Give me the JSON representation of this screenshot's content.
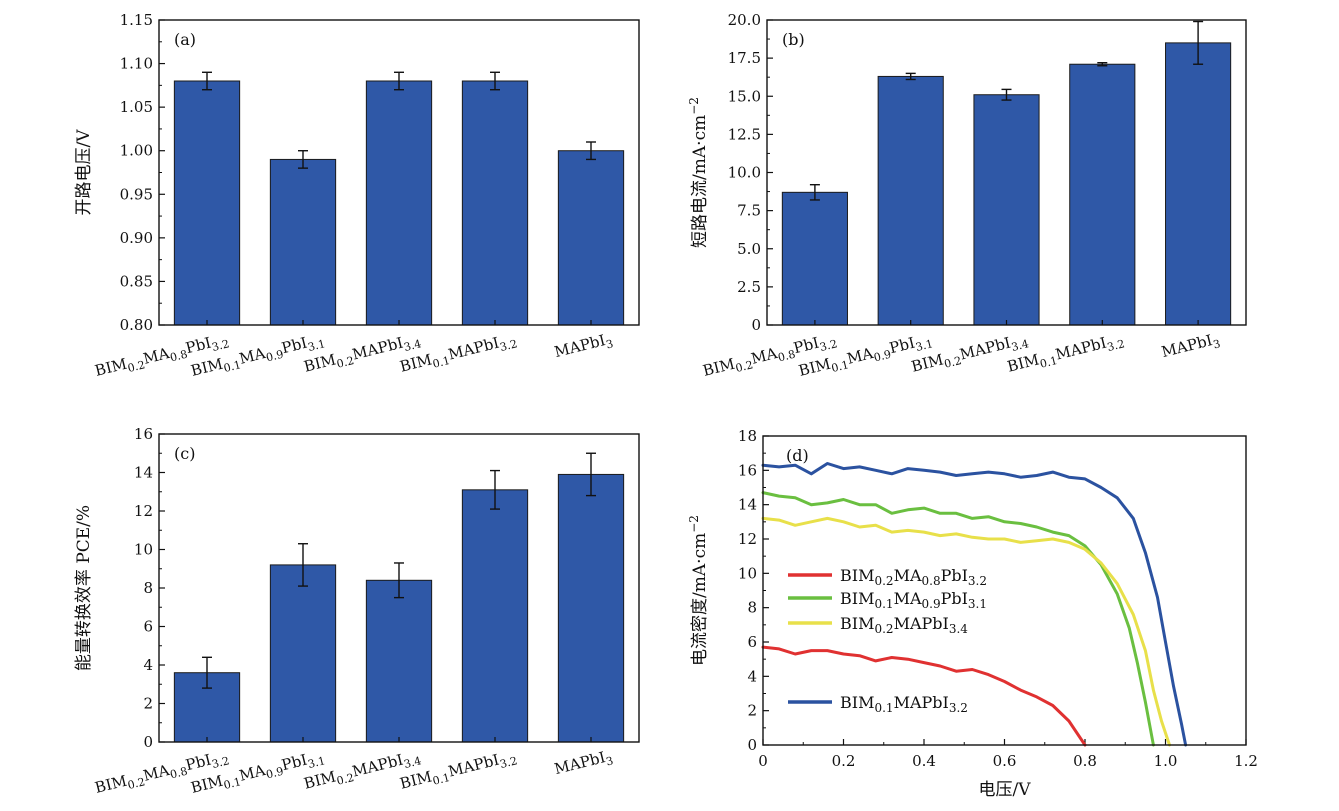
{
  "chart_data": [
    {
      "panel": "(a)",
      "type": "bar",
      "ylabel": "开路电压/V",
      "ylim": [
        0.8,
        1.15
      ],
      "yticks": [
        "0.80",
        "0.85",
        "0.90",
        "0.95",
        "1.00",
        "1.05",
        "1.10",
        "1.15"
      ],
      "categories": [
        {
          "main": "BIM",
          "sub1": "0.2",
          "mid": "MA",
          "sub2": "0.8",
          "tail": "PbI",
          "sub3": "3.2"
        },
        {
          "main": "BIM",
          "sub1": "0.1",
          "mid": "MA",
          "sub2": "0.9",
          "tail": "PbI",
          "sub3": "3.1"
        },
        {
          "main": "BIM",
          "sub1": "0.2",
          "mid": "",
          "sub2": "",
          "tail": "MAPbI",
          "sub3": "3.4"
        },
        {
          "main": "BIM",
          "sub1": "0.1",
          "mid": "",
          "sub2": "",
          "tail": "MAPbI",
          "sub3": "3.2"
        },
        {
          "main": "",
          "sub1": "",
          "mid": "",
          "sub2": "",
          "tail": "MAPbI",
          "sub3": "3"
        }
      ],
      "values": [
        1.08,
        0.99,
        1.08,
        1.08,
        1.0
      ],
      "errors": [
        0.01,
        0.01,
        0.01,
        0.01,
        0.01
      ]
    },
    {
      "panel": "(b)",
      "type": "bar",
      "ylabel": "短路电流/mA·cm",
      "ylabel_sup": "−2",
      "ylim": [
        0,
        20
      ],
      "yticks": [
        "0",
        "2.5",
        "5.0",
        "7.5",
        "10.0",
        "12.5",
        "15.0",
        "17.5",
        "20.0"
      ],
      "categories": [
        {
          "main": "BIM",
          "sub1": "0.2",
          "mid": "MA",
          "sub2": "0.8",
          "tail": "PbI",
          "sub3": "3.2"
        },
        {
          "main": "BIM",
          "sub1": "0.1",
          "mid": "MA",
          "sub2": "0.9",
          "tail": "PbI",
          "sub3": "3.1"
        },
        {
          "main": "BIM",
          "sub1": "0.2",
          "mid": "",
          "sub2": "",
          "tail": "MAPbI",
          "sub3": "3.4"
        },
        {
          "main": "BIM",
          "sub1": "0.1",
          "mid": "",
          "sub2": "",
          "tail": "MAPbI",
          "sub3": "3.2"
        },
        {
          "main": "",
          "sub1": "",
          "mid": "",
          "sub2": "",
          "tail": "MAPbI",
          "sub3": "3"
        }
      ],
      "values": [
        8.7,
        16.3,
        15.1,
        17.1,
        18.5
      ],
      "errors": [
        0.5,
        0.2,
        0.35,
        0.1,
        1.4
      ]
    },
    {
      "panel": "(c)",
      "type": "bar",
      "ylabel": "能量转换效率 PCE/%",
      "ylim": [
        0,
        16
      ],
      "yticks": [
        "0",
        "2",
        "4",
        "6",
        "8",
        "10",
        "12",
        "14",
        "16"
      ],
      "categories": [
        {
          "main": "BIM",
          "sub1": "0.2",
          "mid": "MA",
          "sub2": "0.8",
          "tail": "PbI",
          "sub3": "3.2"
        },
        {
          "main": "BIM",
          "sub1": "0.1",
          "mid": "MA",
          "sub2": "0.9",
          "tail": "PbI",
          "sub3": "3.1"
        },
        {
          "main": "BIM",
          "sub1": "0.2",
          "mid": "",
          "sub2": "",
          "tail": "MAPbI",
          "sub3": "3.4"
        },
        {
          "main": "BIM",
          "sub1": "0.1",
          "mid": "",
          "sub2": "",
          "tail": "MAPbI",
          "sub3": "3.2"
        },
        {
          "main": "",
          "sub1": "",
          "mid": "",
          "sub2": "",
          "tail": "MAPbI",
          "sub3": "3"
        }
      ],
      "values": [
        3.6,
        9.2,
        8.4,
        13.1,
        13.9
      ],
      "errors": [
        0.8,
        1.1,
        0.9,
        1.0,
        1.1
      ]
    },
    {
      "panel": "(d)",
      "type": "line",
      "xlabel": "电压/V",
      "ylabel": "电流密度/mA·cm",
      "ylabel_sup": "−2",
      "xlim": [
        0,
        1.2
      ],
      "ylim": [
        0,
        18
      ],
      "xticks": [
        "0",
        "0.2",
        "0.4",
        "0.6",
        "0.8",
        "1.0",
        "1.2"
      ],
      "yticks": [
        "0",
        "2",
        "4",
        "6",
        "8",
        "10",
        "12",
        "14",
        "16",
        "18"
      ],
      "series": [
        {
          "legend": {
            "main": "BIM",
            "sub1": "0.2",
            "mid": "MA",
            "sub2": "0.8",
            "tail": "PbI",
            "sub3": "3.2"
          },
          "color": "#e03131",
          "points": [
            [
              0,
              5.7
            ],
            [
              0.04,
              5.6
            ],
            [
              0.08,
              5.3
            ],
            [
              0.12,
              5.5
            ],
            [
              0.16,
              5.5
            ],
            [
              0.2,
              5.3
            ],
            [
              0.24,
              5.2
            ],
            [
              0.28,
              4.9
            ],
            [
              0.32,
              5.1
            ],
            [
              0.36,
              5.0
            ],
            [
              0.4,
              4.8
            ],
            [
              0.44,
              4.6
            ],
            [
              0.48,
              4.3
            ],
            [
              0.52,
              4.4
            ],
            [
              0.56,
              4.1
            ],
            [
              0.6,
              3.7
            ],
            [
              0.64,
              3.2
            ],
            [
              0.68,
              2.8
            ],
            [
              0.72,
              2.3
            ],
            [
              0.76,
              1.4
            ],
            [
              0.8,
              0
            ]
          ]
        },
        {
          "legend": {
            "main": "BIM",
            "sub1": "0.1",
            "mid": "MA",
            "sub2": "0.9",
            "tail": "PbI",
            "sub3": "3.1"
          },
          "color": "#6abf40",
          "points": [
            [
              0,
              14.7
            ],
            [
              0.04,
              14.5
            ],
            [
              0.08,
              14.4
            ],
            [
              0.12,
              14.0
            ],
            [
              0.16,
              14.1
            ],
            [
              0.2,
              14.3
            ],
            [
              0.24,
              14.0
            ],
            [
              0.28,
              14.0
            ],
            [
              0.32,
              13.5
            ],
            [
              0.36,
              13.7
            ],
            [
              0.4,
              13.8
            ],
            [
              0.44,
              13.5
            ],
            [
              0.48,
              13.5
            ],
            [
              0.52,
              13.2
            ],
            [
              0.56,
              13.3
            ],
            [
              0.6,
              13.0
            ],
            [
              0.64,
              12.9
            ],
            [
              0.68,
              12.7
            ],
            [
              0.72,
              12.4
            ],
            [
              0.76,
              12.2
            ],
            [
              0.8,
              11.6
            ],
            [
              0.84,
              10.5
            ],
            [
              0.88,
              8.8
            ],
            [
              0.91,
              6.8
            ],
            [
              0.93,
              4.8
            ],
            [
              0.95,
              2.5
            ],
            [
              0.97,
              0
            ]
          ]
        },
        {
          "legend": {
            "main": "BIM",
            "sub1": "0.2",
            "mid": "",
            "sub2": "",
            "tail": "MAPbI",
            "sub3": "3.4"
          },
          "color": "#e8e04a",
          "points": [
            [
              0,
              13.2
            ],
            [
              0.04,
              13.1
            ],
            [
              0.08,
              12.8
            ],
            [
              0.12,
              13.0
            ],
            [
              0.16,
              13.2
            ],
            [
              0.2,
              13.0
            ],
            [
              0.24,
              12.7
            ],
            [
              0.28,
              12.8
            ],
            [
              0.32,
              12.4
            ],
            [
              0.36,
              12.5
            ],
            [
              0.4,
              12.4
            ],
            [
              0.44,
              12.2
            ],
            [
              0.48,
              12.3
            ],
            [
              0.52,
              12.1
            ],
            [
              0.56,
              12.0
            ],
            [
              0.6,
              12.0
            ],
            [
              0.64,
              11.8
            ],
            [
              0.68,
              11.9
            ],
            [
              0.72,
              12.0
            ],
            [
              0.76,
              11.8
            ],
            [
              0.8,
              11.4
            ],
            [
              0.84,
              10.6
            ],
            [
              0.88,
              9.4
            ],
            [
              0.92,
              7.6
            ],
            [
              0.95,
              5.5
            ],
            [
              0.97,
              3.2
            ],
            [
              0.99,
              1.4
            ],
            [
              1.01,
              0
            ]
          ]
        },
        {
          "legend": {
            "main": "BIM",
            "sub1": "0.1",
            "mid": "",
            "sub2": "",
            "tail": "MAPbI",
            "sub3": "3.2"
          },
          "color": "#2b52a0",
          "points": [
            [
              0,
              16.3
            ],
            [
              0.04,
              16.2
            ],
            [
              0.08,
              16.3
            ],
            [
              0.12,
              15.8
            ],
            [
              0.16,
              16.4
            ],
            [
              0.2,
              16.1
            ],
            [
              0.24,
              16.2
            ],
            [
              0.28,
              16.0
            ],
            [
              0.32,
              15.8
            ],
            [
              0.36,
              16.1
            ],
            [
              0.4,
              16.0
            ],
            [
              0.44,
              15.9
            ],
            [
              0.48,
              15.7
            ],
            [
              0.52,
              15.8
            ],
            [
              0.56,
              15.9
            ],
            [
              0.6,
              15.8
            ],
            [
              0.64,
              15.6
            ],
            [
              0.68,
              15.7
            ],
            [
              0.72,
              15.9
            ],
            [
              0.76,
              15.6
            ],
            [
              0.8,
              15.5
            ],
            [
              0.84,
              15.0
            ],
            [
              0.88,
              14.4
            ],
            [
              0.92,
              13.2
            ],
            [
              0.95,
              11.2
            ],
            [
              0.98,
              8.6
            ],
            [
              1.0,
              6.0
            ],
            [
              1.02,
              3.4
            ],
            [
              1.04,
              1.2
            ],
            [
              1.05,
              0
            ]
          ]
        }
      ]
    }
  ]
}
